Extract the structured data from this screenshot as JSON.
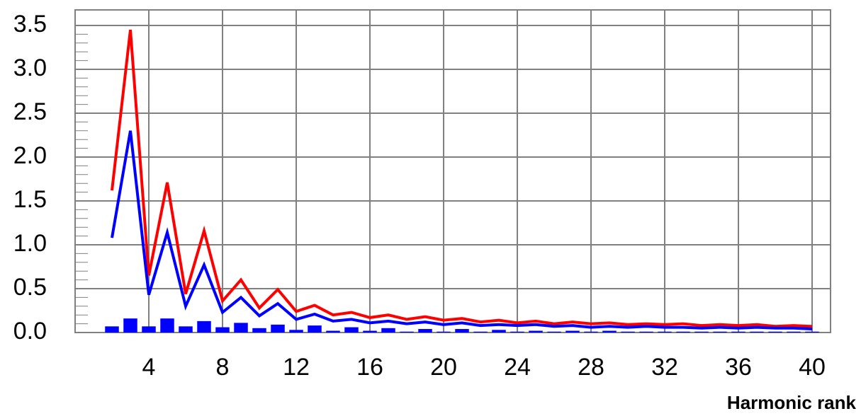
{
  "chart_data": {
    "type": "line",
    "xlabel": "Harmonic rank",
    "ylabel": "",
    "title": "",
    "xlim": [
      2,
      40
    ],
    "ylim": [
      0,
      3.5
    ],
    "x_ticks": [
      "4",
      "8",
      "12",
      "16",
      "20",
      "24",
      "28",
      "32",
      "36",
      "40"
    ],
    "y_ticks": [
      "0.0",
      "0.5",
      "1.0",
      "1.5",
      "2.0",
      "2.5",
      "3.0",
      "3.5"
    ],
    "grid": true,
    "x": [
      2,
      3,
      4,
      5,
      6,
      7,
      8,
      9,
      10,
      11,
      12,
      13,
      14,
      15,
      16,
      17,
      18,
      19,
      20,
      21,
      22,
      23,
      24,
      25,
      26,
      27,
      28,
      29,
      30,
      31,
      32,
      33,
      34,
      35,
      36,
      37,
      38,
      39,
      40
    ],
    "series": [
      {
        "color": "#ff0000",
        "values": [
          1.62,
          3.45,
          0.65,
          1.71,
          0.44,
          1.16,
          0.36,
          0.6,
          0.28,
          0.49,
          0.24,
          0.31,
          0.2,
          0.23,
          0.17,
          0.2,
          0.15,
          0.18,
          0.14,
          0.16,
          0.12,
          0.14,
          0.11,
          0.13,
          0.1,
          0.12,
          0.1,
          0.11,
          0.09,
          0.1,
          0.09,
          0.1,
          0.08,
          0.09,
          0.08,
          0.09,
          0.07,
          0.08,
          0.07
        ]
      },
      {
        "color": "#0000ff",
        "values": [
          1.08,
          2.3,
          0.43,
          1.14,
          0.3,
          0.77,
          0.23,
          0.4,
          0.19,
          0.33,
          0.15,
          0.21,
          0.13,
          0.15,
          0.11,
          0.13,
          0.1,
          0.12,
          0.09,
          0.11,
          0.08,
          0.09,
          0.08,
          0.09,
          0.07,
          0.08,
          0.06,
          0.07,
          0.06,
          0.07,
          0.06,
          0.06,
          0.05,
          0.06,
          0.05,
          0.06,
          0.05,
          0.05,
          0.04
        ]
      }
    ],
    "bars": {
      "color": "#0000ff",
      "values": [
        0.07,
        0.16,
        0.07,
        0.16,
        0.07,
        0.13,
        0.06,
        0.11,
        0.05,
        0.09,
        0.03,
        0.08,
        0.02,
        0.06,
        0.02,
        0.05,
        0.01,
        0.04,
        0.01,
        0.04,
        0.01,
        0.03,
        0.01,
        0.02,
        0.01,
        0.02,
        0.01,
        0.02,
        0.01,
        0.01,
        0.01,
        0.01,
        0.01,
        0.01,
        0.01,
        0.01,
        0.01,
        0.01,
        0.01
      ]
    }
  }
}
